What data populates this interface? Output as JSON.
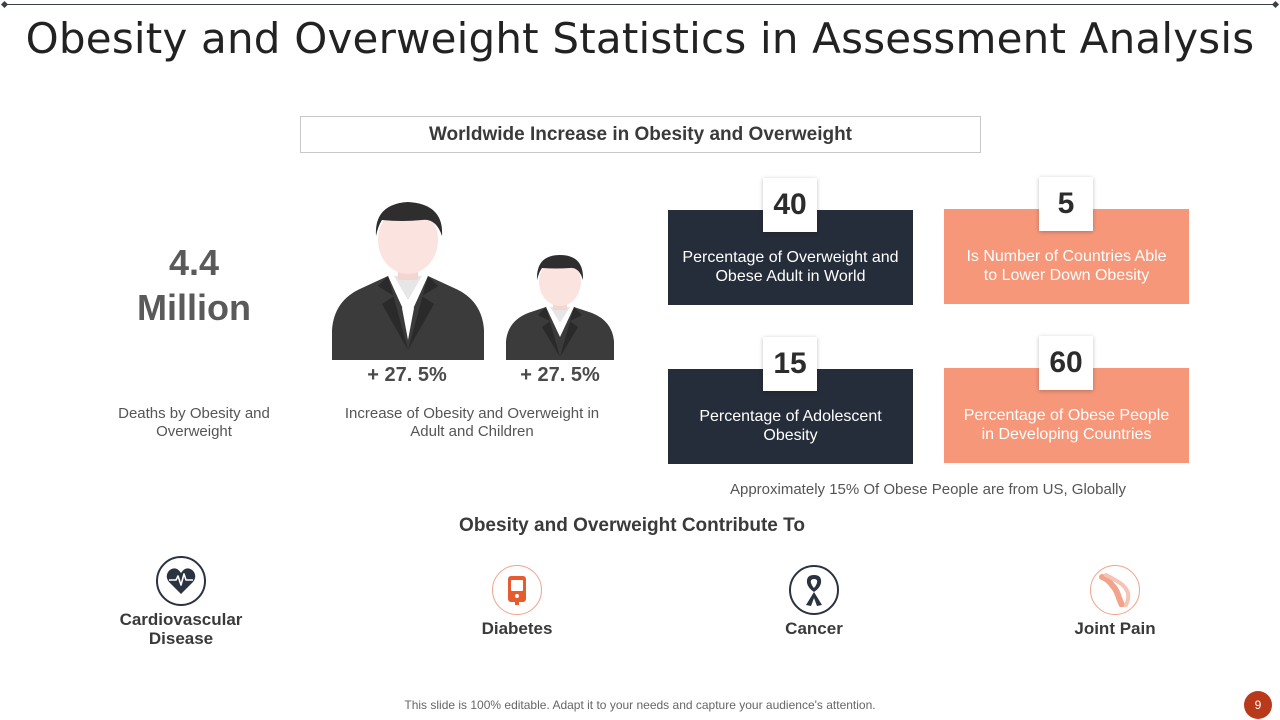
{
  "slide": {
    "title": "Obesity and Overweight Statistics in Assessment Analysis",
    "subtitle": "Worldwide Increase in Obesity and Overweight",
    "deaths": {
      "value_line1": "4.4",
      "value_line2": "Million",
      "caption": "Deaths by Obesity and Overweight"
    },
    "increase": {
      "adult_pct": "+ 27. 5%",
      "child_pct": "+ 27. 5%",
      "caption": "Increase of Obesity and Overweight in Adult and Children",
      "icons": [
        "adult-person-icon",
        "child-person-icon"
      ]
    },
    "cards": [
      {
        "number": "40",
        "text": "Percentage of Overweight and Obese Adult in World",
        "style": "dark"
      },
      {
        "number": "5",
        "text": "Is Number of Countries Able to Lower Down Obesity",
        "style": "salmon"
      },
      {
        "number": "15",
        "text": "Percentage of Adolescent Obesity",
        "style": "dark"
      },
      {
        "number": "60",
        "text": "Percentage of Obese People in Developing Countries",
        "style": "salmon"
      }
    ],
    "note": "Approximately  15% Of Obese People are from US, Globally",
    "contribute_heading": "Obesity and Overweight Contribute To",
    "conditions": [
      {
        "label": "Cardiovascular Disease",
        "icon": "heart-pulse-icon"
      },
      {
        "label": "Diabetes",
        "icon": "glucose-meter-icon"
      },
      {
        "label": "Cancer",
        "icon": "awareness-ribbon-icon"
      },
      {
        "label": "Joint Pain",
        "icon": "knee-joint-icon"
      }
    ],
    "footer": "This slide is 100% editable. Adapt it to your needs and capture your audience's attention.",
    "page_number": "9"
  },
  "colors": {
    "dark": "#262d3a",
    "salmon": "#f6977a",
    "accent": "#b83a1b"
  }
}
